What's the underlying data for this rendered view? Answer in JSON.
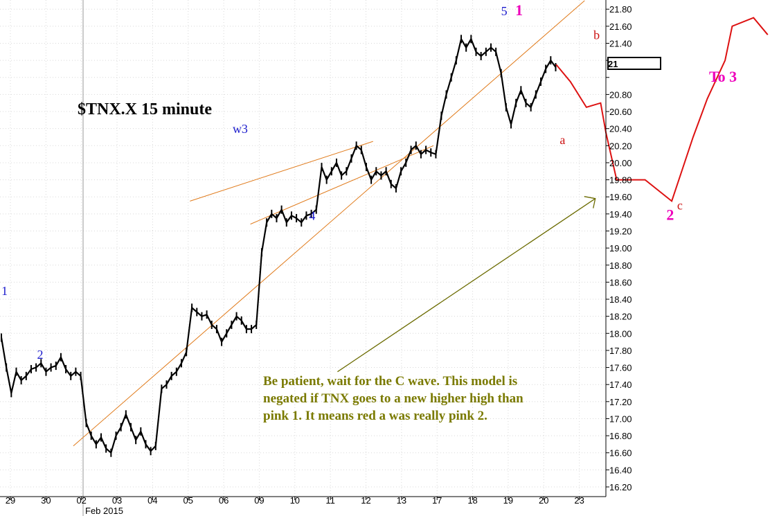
{
  "chart_data": {
    "type": "line",
    "title": "$TNX.X 15 minute",
    "ylim": [
      16.1,
      21.93
    ],
    "y_ticks": [
      "16.20",
      "16.40",
      "16.60",
      "16.80",
      "17.00",
      "17.20",
      "17.40",
      "17.60",
      "17.80",
      "18.00",
      "18.20",
      "18.40",
      "18.60",
      "18.80",
      "19.00",
      "19.20",
      "19.40",
      "19.60",
      "19.80",
      "20.00",
      "20.20",
      "20.40",
      "20.60",
      "20.80",
      "21",
      "21.20",
      "21.40",
      "21.60",
      "21.80"
    ],
    "x_ticks": [
      "29",
      "30",
      "02",
      "03",
      "04",
      "05",
      "06",
      "09",
      "10",
      "11",
      "12",
      "13",
      "17",
      "18",
      "19",
      "20",
      "23"
    ],
    "x_month_label": "Feb 2015",
    "last_price_label": "21",
    "series": [
      {
        "values": [
          17.95,
          17.6,
          17.3,
          17.55,
          17.45,
          17.5,
          17.58,
          17.6,
          17.65,
          17.55,
          17.6,
          17.62,
          17.72,
          17.58,
          17.5,
          17.55,
          17.5,
          16.95,
          16.8,
          16.7,
          16.78,
          16.65,
          16.6,
          16.8,
          16.9,
          17.05,
          16.9,
          16.75,
          16.85,
          16.7,
          16.62,
          16.68,
          17.35,
          17.4,
          17.5,
          17.55,
          17.65,
          17.78,
          18.3,
          18.25,
          18.2,
          18.22,
          18.1,
          18.05,
          17.9,
          18.0,
          18.1,
          18.2,
          18.15,
          18.05,
          18.05,
          18.1,
          18.95,
          19.3,
          19.4,
          19.35,
          19.45,
          19.3,
          19.38,
          19.35,
          19.3,
          19.38,
          19.4,
          19.45,
          19.95,
          19.8,
          19.9,
          20.0,
          19.85,
          19.9,
          20.05,
          20.2,
          20.15,
          19.95,
          19.8,
          19.9,
          19.85,
          19.9,
          19.75,
          19.7,
          19.9,
          20.0,
          20.15,
          20.2,
          20.1,
          20.15,
          20.12,
          20.1,
          20.55,
          20.8,
          21.0,
          21.2,
          21.45,
          21.35,
          21.45,
          21.3,
          21.25,
          21.3,
          21.35,
          21.3,
          21.05,
          20.65,
          20.45,
          20.7,
          20.85,
          20.7,
          20.65,
          20.8,
          20.95,
          21.1,
          21.2,
          21.12
        ]
      }
    ],
    "trendlines": [
      {
        "x": [
          2.77,
          17.15
        ],
        "y": [
          16.68,
          21.9
        ]
      },
      {
        "x": [
          6.05,
          11.2
        ],
        "y": [
          19.55,
          20.25
        ]
      },
      {
        "x": [
          7.75,
          12.9
        ],
        "y": [
          19.28,
          20.2
        ]
      }
    ],
    "projection": {
      "x": [
        19.65,
        20.05,
        20.5,
        20.9,
        21.05,
        21.35,
        22.15,
        22.9,
        23.1,
        23.5,
        23.9,
        24.4,
        24.6,
        25.2,
        25.6
      ],
      "y": [
        21.15,
        20.95,
        20.65,
        20.7,
        20.35,
        19.8,
        19.8,
        19.55,
        19.8,
        20.3,
        20.75,
        21.2,
        21.6,
        21.7,
        21.5
      ]
    },
    "target_arrow": {
      "x": [
        11.3,
        16.45
      ],
      "y": [
        17.55,
        19.58
      ]
    },
    "annotations": [
      {
        "text": "1",
        "x": 3.85,
        "y": 18.45,
        "color": "#1a1acc"
      },
      {
        "text": "2",
        "x": 4.85,
        "y": 17.7,
        "color": "#1a1acc"
      },
      {
        "text": "w3",
        "x": 10.35,
        "y": 20.35,
        "color": "#1a1acc"
      },
      {
        "text": "4",
        "x": 12.5,
        "y": 19.33,
        "color": "#1a1acc"
      },
      {
        "text": "5",
        "x": 17.9,
        "y": 21.73,
        "color": "#1a1acc"
      },
      {
        "text": "1",
        "x": 18.3,
        "y": 21.73,
        "color": "#ee00bb"
      },
      {
        "text": "a",
        "x": 19.55,
        "y": 20.22,
        "color": "#cc1111"
      },
      {
        "text": "b",
        "x": 20.5,
        "y": 21.45,
        "color": "#cc1111"
      },
      {
        "text": "c",
        "x": 22.85,
        "y": 19.45,
        "color": "#cc1111"
      },
      {
        "text": "2",
        "x": 22.55,
        "y": 19.33,
        "color": "#ee00bb"
      },
      {
        "text": "To 3",
        "x": 23.75,
        "y": 20.95,
        "color": "#ee00bb"
      }
    ],
    "note": [
      "Be patient, wait for the C wave.  This model is",
      "negated if TNX goes to a new higher high than",
      "pink 1.  It means red a was really pink 2."
    ],
    "colors": {
      "price": "#000000",
      "trendline": "#e07a1a",
      "projection": "#dd1111",
      "arrow": "#6b6b00",
      "note": "#7a7a00",
      "label_blue": "#1a1acc",
      "label_pink": "#ee00bb",
      "label_red": "#cc1111"
    }
  }
}
